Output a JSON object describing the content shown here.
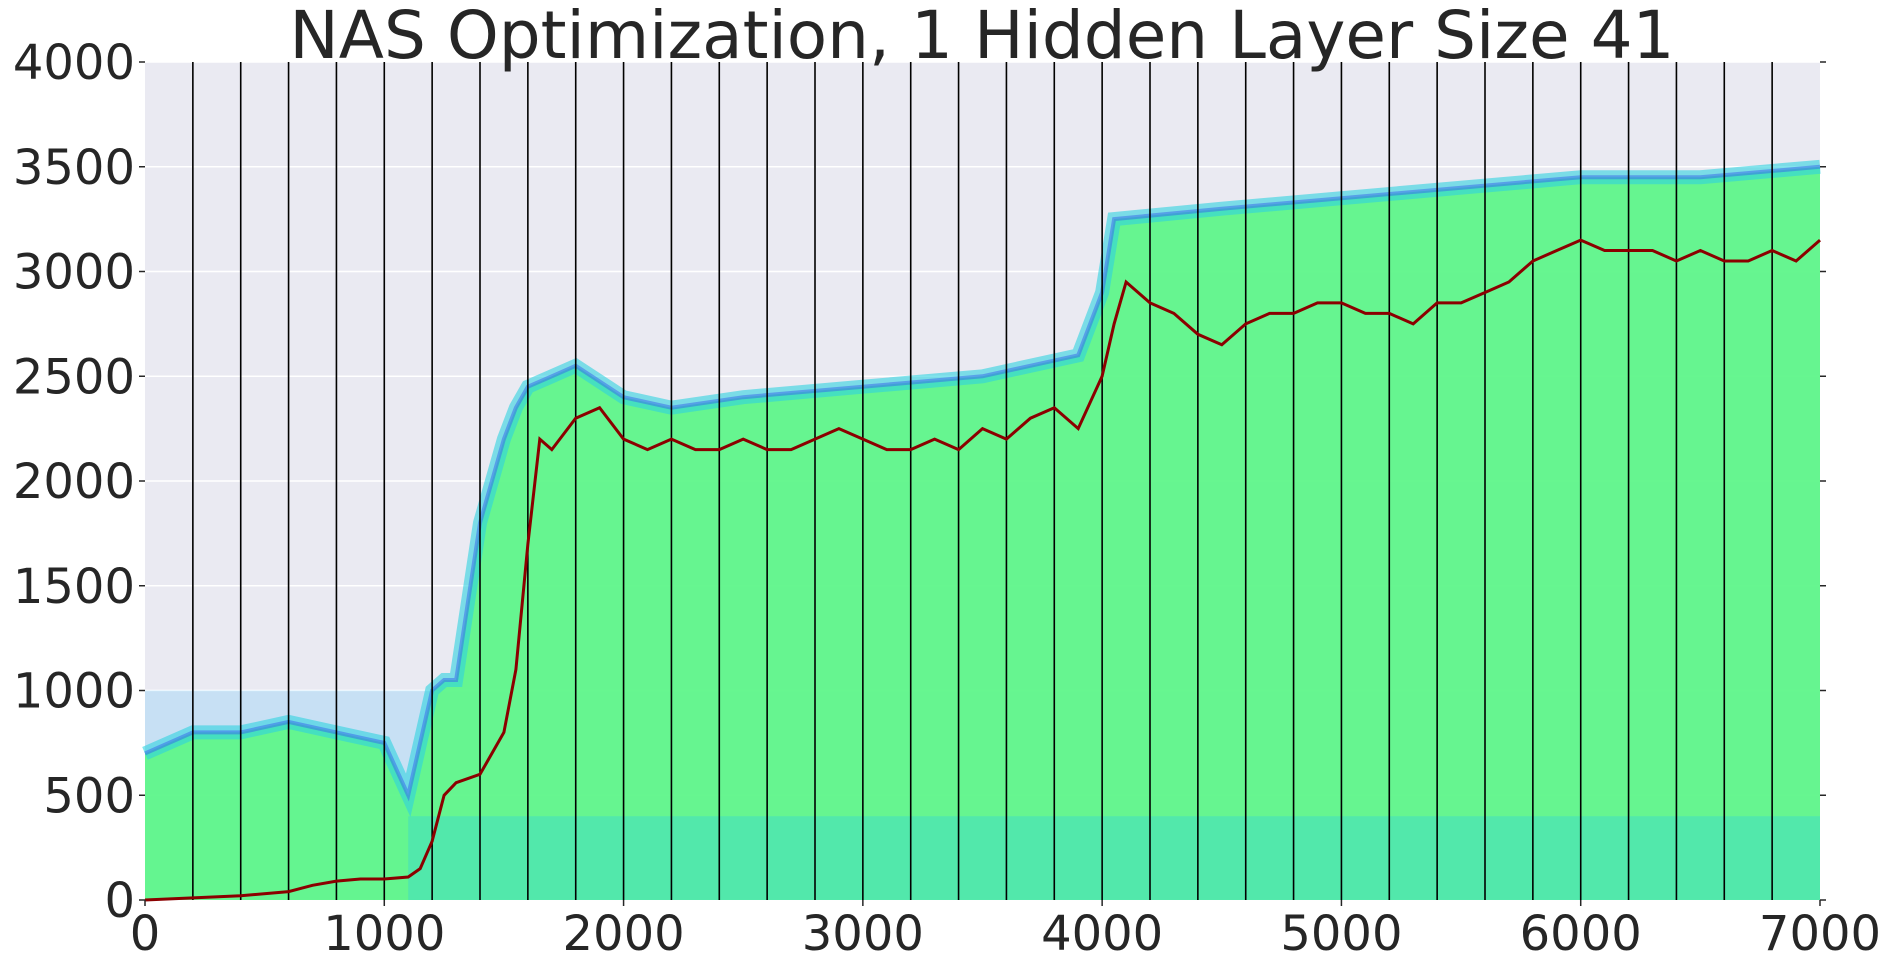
{
  "chart_data": {
    "type": "line",
    "title": "NAS Optimization, 1 Hidden Layer Size 41",
    "xlabel": "",
    "ylabel": "",
    "xlim": [
      0,
      7000
    ],
    "ylim": [
      0,
      4000
    ],
    "x_ticks": [
      "0",
      "1000",
      "2000",
      "3000",
      "4000",
      "5000",
      "6000",
      "7000"
    ],
    "y_ticks": [
      "0",
      "500",
      "1000",
      "1500",
      "2000",
      "2500",
      "3000",
      "3500",
      "4000"
    ],
    "grid": true,
    "legend": "none",
    "generation_markers_x": [
      200,
      400,
      600,
      800,
      1000,
      1200,
      1400,
      1600,
      1800,
      2000,
      2200,
      2400,
      2600,
      2800,
      3000,
      3200,
      3400,
      3600,
      3800,
      4000,
      4200,
      4400,
      4600,
      4800,
      5000,
      5200,
      5400,
      5600,
      5800,
      6000,
      6200,
      6400,
      6600,
      6800
    ],
    "series": [
      {
        "color": "#8b0000",
        "x": [
          0,
          200,
          400,
          600,
          700,
          800,
          900,
          1000,
          1100,
          1150,
          1200,
          1250,
          1300,
          1400,
          1500,
          1550,
          1600,
          1650,
          1700,
          1800,
          1900,
          2000,
          2100,
          2200,
          2300,
          2400,
          2500,
          2600,
          2700,
          2800,
          2900,
          3000,
          3100,
          3200,
          3300,
          3400,
          3500,
          3600,
          3700,
          3800,
          3900,
          4000,
          4050,
          4100,
          4200,
          4300,
          4400,
          4500,
          4600,
          4700,
          4800,
          4900,
          5000,
          5100,
          5200,
          5300,
          5400,
          5500,
          5600,
          5700,
          5800,
          5900,
          6000,
          6100,
          6200,
          6300,
          6400,
          6500,
          6600,
          6700,
          6800,
          6900,
          7000
        ],
        "values": [
          0,
          10,
          20,
          40,
          70,
          90,
          100,
          100,
          110,
          150,
          280,
          500,
          560,
          600,
          800,
          1100,
          1700,
          2200,
          2150,
          2300,
          2350,
          2200,
          2150,
          2200,
          2150,
          2150,
          2200,
          2150,
          2150,
          2200,
          2250,
          2200,
          2150,
          2150,
          2200,
          2150,
          2250,
          2200,
          2300,
          2350,
          2250,
          2500,
          2750,
          2950,
          2850,
          2800,
          2700,
          2650,
          2750,
          2800,
          2800,
          2850,
          2850,
          2800,
          2800,
          2750,
          2850,
          2850,
          2900,
          2950,
          3050,
          3100,
          3150,
          3100,
          3100,
          3100,
          3050,
          3100,
          3050,
          3050,
          3100,
          3050,
          3150
        ]
      }
    ],
    "band_outline": {
      "x": [
        0,
        200,
        400,
        600,
        800,
        1000,
        1100,
        1200,
        1250,
        1300,
        1400,
        1500,
        1550,
        1600,
        1700,
        1800,
        2000,
        2200,
        2500,
        3000,
        3500,
        3900,
        4000,
        4050,
        4500,
        5000,
        5500,
        6000,
        6500,
        7000
      ],
      "upper": [
        700,
        800,
        800,
        850,
        800,
        750,
        500,
        1000,
        1050,
        1050,
        1800,
        2200,
        2350,
        2450,
        2500,
        2550,
        2400,
        2350,
        2400,
        2450,
        2500,
        2600,
        2900,
        3250,
        3300,
        3350,
        3400,
        3450,
        3450,
        3500
      ],
      "lower": [
        0,
        0,
        0,
        0,
        0,
        0,
        0,
        0,
        0,
        0,
        0,
        0,
        0,
        0,
        0,
        0,
        0,
        0,
        0,
        0,
        0,
        0,
        0,
        0,
        0,
        0,
        0,
        0,
        0,
        0
      ]
    },
    "colors": {
      "background": "#eaeaf2",
      "grid": "#ffffff",
      "band_fill": "#5ff58a",
      "band_edge": "#2fd2e0",
      "band_top": "#3a6fe8",
      "early_band": "#87cefa",
      "marker_line": "#000000",
      "text": "#262626"
    }
  }
}
